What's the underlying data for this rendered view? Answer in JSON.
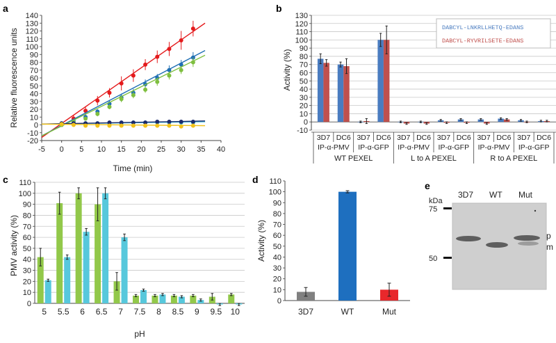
{
  "panel_labels": [
    "a",
    "b",
    "c",
    "d",
    "e"
  ],
  "chart_data": [
    {
      "panel": "a",
      "type": "scatter",
      "title": "",
      "xlabel": "Time (min)",
      "ylabel": "Relative fluorescence units",
      "xlim": [
        -5,
        40
      ],
      "ylim": [
        -20,
        140
      ],
      "xticks": [
        -5,
        0,
        5,
        10,
        15,
        20,
        25,
        30,
        35,
        40
      ],
      "yticks": [
        -20,
        -10,
        0,
        10,
        20,
        30,
        40,
        50,
        60,
        70,
        80,
        90,
        100,
        110,
        120,
        130,
        140
      ],
      "x": [
        0,
        3,
        6,
        9,
        12,
        15,
        18,
        21,
        24,
        27,
        30,
        33
      ],
      "series": [
        {
          "name": "red",
          "color": "#e41a1c",
          "values": [
            0,
            8,
            18,
            31,
            41,
            53,
            63,
            77,
            87,
            97,
            108,
            123
          ],
          "errors": [
            2,
            4,
            5,
            6,
            6,
            9,
            8,
            7,
            8,
            9,
            12,
            10
          ],
          "fit": [
            [
              -5,
              -16
            ],
            [
              36,
              130
            ]
          ]
        },
        {
          "name": "blue",
          "color": "#1f6fb4",
          "values": [
            0,
            5,
            10,
            17,
            27,
            35,
            41,
            52,
            60,
            70,
            77,
            86
          ],
          "errors": [
            1,
            2,
            3,
            3,
            4,
            5,
            5,
            6,
            5,
            6,
            6,
            7
          ],
          "fit": [
            [
              -5,
              -14
            ],
            [
              36,
              95
            ]
          ]
        },
        {
          "name": "green",
          "color": "#7fbf3f",
          "values": [
            0,
            4,
            8,
            14,
            23,
            33,
            38,
            45,
            55,
            63,
            70,
            80
          ],
          "errors": [
            1,
            2,
            2,
            3,
            3,
            4,
            4,
            4,
            5,
            5,
            5,
            6
          ],
          "fit": [
            [
              -5,
              -14
            ],
            [
              36,
              89
            ]
          ]
        },
        {
          "name": "cyan",
          "color": "#4fc3e0",
          "values": [
            2,
            2,
            2,
            2,
            2,
            2,
            3,
            3,
            3,
            3,
            3,
            3
          ],
          "errors": [
            1,
            1,
            1,
            1,
            1,
            1,
            1,
            1,
            1,
            1,
            1,
            1
          ],
          "fit": [
            [
              -5,
              1
            ],
            [
              36,
              4
            ]
          ]
        },
        {
          "name": "navy",
          "color": "#1b2a6b",
          "values": [
            2,
            2,
            2,
            2,
            3,
            3,
            3,
            3,
            4,
            4,
            4,
            4
          ],
          "errors": [
            1,
            1,
            1,
            1,
            1,
            1,
            1,
            1,
            1,
            1,
            1,
            1
          ],
          "fit": [
            [
              -5,
              1
            ],
            [
              36,
              5
            ]
          ]
        },
        {
          "name": "yellow",
          "color": "#f2c21b",
          "values": [
            1,
            0,
            -1,
            -1,
            -1,
            -1,
            -1,
            -1,
            -1,
            -1,
            -2,
            -1
          ],
          "errors": [
            1,
            1,
            1,
            1,
            1,
            1,
            1,
            1,
            1,
            1,
            1,
            1
          ],
          "fit": [
            [
              -5,
              1
            ],
            [
              36,
              -1
            ]
          ]
        }
      ]
    },
    {
      "panel": "b",
      "type": "bar",
      "ylabel": "Activity (%)",
      "ylim": [
        -10,
        130
      ],
      "yticks": [
        -10,
        0,
        10,
        20,
        30,
        40,
        50,
        60,
        70,
        80,
        90,
        100,
        110,
        120,
        130
      ],
      "categories": [
        "3D7",
        "DC6",
        "3D7",
        "DC6",
        "3D7",
        "DC6",
        "3D7",
        "DC6",
        "3D7",
        "DC6",
        "3D7",
        "DC6"
      ],
      "mid_labels": [
        "IP-α-PMV",
        "IP-α-GFP",
        "IP-α-PMV",
        "IP-α-GFP",
        "IP-α-PMV",
        "IP-α-GFP"
      ],
      "group_labels": [
        "WT PEXEL",
        "L to A PEXEL",
        "R to A PEXEL"
      ],
      "legend": [
        "DABCYL-LNKRLLHETQ-EDANS",
        "DABCYL-RYVRILSETE-EDANS"
      ],
      "series": [
        {
          "name": "DABCYL-LNKRLLHETQ-EDANS",
          "color": "#4a7cc0",
          "values": [
            77,
            70,
            0,
            100,
            0,
            0,
            2,
            3,
            3,
            4,
            2,
            1
          ],
          "errors": [
            6,
            3,
            1,
            8,
            1,
            1,
            1,
            1,
            1,
            1,
            1,
            1
          ]
        },
        {
          "name": "DABCYL-RYVRILSETE-EDANS",
          "color": "#c0504d",
          "values": [
            72,
            68,
            1,
            100,
            -2,
            -2,
            -1,
            -1,
            -2,
            3,
            0,
            1
          ],
          "errors": [
            4,
            9,
            3,
            17,
            1,
            1,
            1,
            1,
            1,
            1,
            1,
            1
          ]
        }
      ]
    },
    {
      "panel": "c",
      "type": "bar",
      "xlabel": "pH",
      "ylabel": "PMV activity (%)",
      "ylim": [
        0,
        110
      ],
      "yticks": [
        0,
        10,
        20,
        30,
        40,
        50,
        60,
        70,
        80,
        90,
        100,
        110
      ],
      "categories": [
        "5",
        "5.5",
        "6",
        "6.5",
        "7",
        "7.5",
        "8",
        "8.5",
        "9",
        "9.5",
        "10"
      ],
      "series": [
        {
          "name": "green",
          "color": "#92c84a",
          "values": [
            42,
            91,
            100,
            90,
            20,
            7,
            7,
            7,
            7,
            6,
            8
          ],
          "errors": [
            8,
            10,
            5,
            15,
            8,
            1,
            1,
            1,
            1,
            3,
            1
          ]
        },
        {
          "name": "cyan",
          "color": "#57c8dc",
          "values": [
            21,
            42,
            65,
            100,
            60,
            12,
            8,
            6,
            3,
            -1,
            -1
          ],
          "errors": [
            1,
            2,
            3,
            5,
            3,
            1,
            1,
            1,
            1,
            1,
            1
          ]
        }
      ]
    },
    {
      "panel": "d",
      "type": "bar",
      "ylabel": "Activity (%)",
      "ylim": [
        0,
        110
      ],
      "yticks": [
        0,
        10,
        20,
        30,
        40,
        50,
        60,
        70,
        80,
        90,
        100,
        110
      ],
      "categories": [
        "3D7",
        "WT",
        "Mut"
      ],
      "category_colors": [
        "#444444",
        "#2b3a8f",
        "#d43a2a"
      ],
      "values": [
        8,
        100,
        10
      ],
      "errors": [
        4,
        1,
        6
      ],
      "colors": [
        "#808080",
        "#1e6fbf",
        "#e8282b"
      ]
    }
  ],
  "blot": {
    "unit_label": "kDa",
    "markers": [
      "75",
      "50"
    ],
    "lanes": [
      "3D7",
      "WT",
      "Mut"
    ],
    "lane_colors": [
      "#222222",
      "#2b3a8f",
      "#d43a2a"
    ],
    "band_labels": [
      "p",
      "m"
    ]
  }
}
